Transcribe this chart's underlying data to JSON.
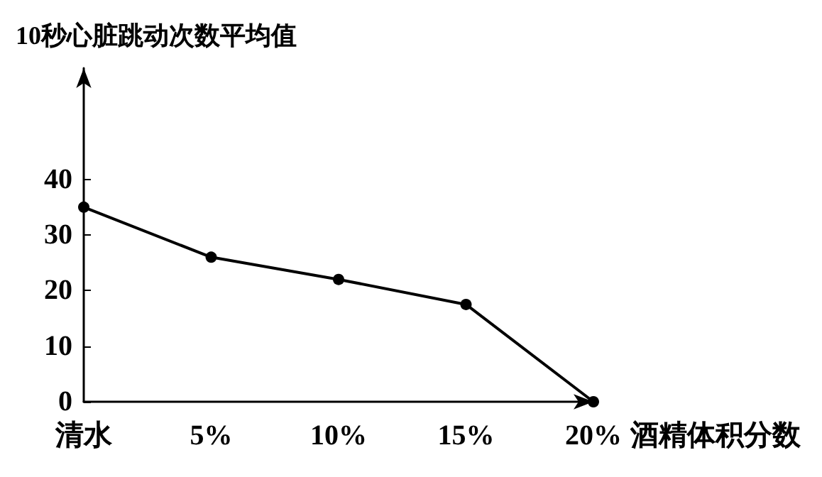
{
  "chart_data": {
    "type": "line",
    "ylabel": "10秒心脏跳动次数平均值",
    "xlabel": "酒精体积分数",
    "categories": [
      "清水",
      "5%",
      "10%",
      "15%",
      "20%"
    ],
    "values": [
      35,
      26,
      22,
      17.5,
      0
    ],
    "color": "#000000",
    "marker": "circle",
    "line_style": "solid",
    "grid": false,
    "ylim": [
      0,
      60
    ],
    "yticks": [
      0,
      10,
      20,
      30,
      40
    ]
  }
}
